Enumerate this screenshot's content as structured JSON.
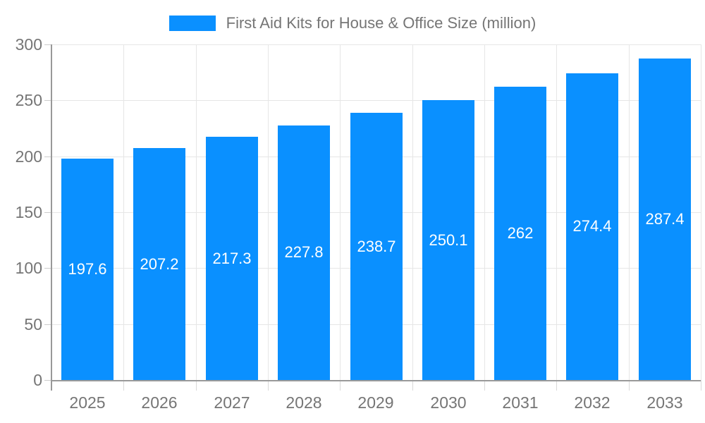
{
  "chart_data": {
    "type": "bar",
    "title": "First Aid Kits for House & Office Size (million)",
    "categories": [
      "2025",
      "2026",
      "2027",
      "2028",
      "2029",
      "2030",
      "2031",
      "2032",
      "2033"
    ],
    "values": [
      197.6,
      207.2,
      217.3,
      227.8,
      238.7,
      250.1,
      262,
      274.4,
      287.4
    ],
    "value_labels": [
      "197.6",
      "207.2",
      "217.3",
      "227.8",
      "238.7",
      "250.1",
      "262",
      "274.4",
      "287.4"
    ],
    "xlabel": "",
    "ylabel": "",
    "ylim": [
      0,
      300
    ],
    "yticks": [
      0,
      50,
      100,
      150,
      200,
      250,
      300
    ],
    "grid": true,
    "legend_position": "top-center",
    "colors": {
      "bar": "#0a90ff",
      "axis_line": "#999999",
      "gridline": "#e6e6e6",
      "tick": "#cccccc",
      "axis_text": "#757575",
      "title_text": "#757575",
      "bar_label_text": "#ffffff",
      "background": "#ffffff"
    }
  }
}
